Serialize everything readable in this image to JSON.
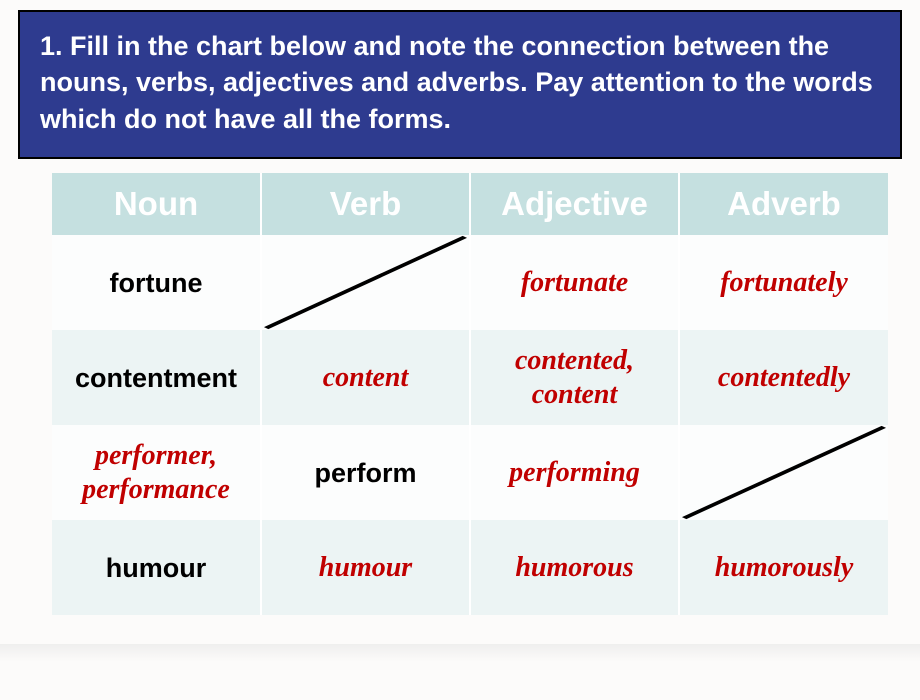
{
  "header": {
    "text": "1.  Fill in the chart below and note the connection between the nouns, verbs, adjectives and adverbs. Pay attention to the words which do not have all the forms."
  },
  "table": {
    "headers": [
      "Noun",
      "Verb",
      "Adjective",
      "Adverb"
    ],
    "header_bg": "#c5e0e0",
    "header_color": "#ffffff",
    "plain_color": "#000000",
    "answer_color": "#c00000",
    "rows": [
      {
        "noun": {
          "text": "fortune",
          "style": "plain"
        },
        "verb": {
          "text": "",
          "style": "diag"
        },
        "adjective": {
          "text": "fortunate",
          "style": "answer"
        },
        "adverb": {
          "text": "fortunately",
          "style": "answer"
        }
      },
      {
        "noun": {
          "text": "contentment",
          "style": "plain"
        },
        "verb": {
          "text": "content",
          "style": "answer"
        },
        "adjective": {
          "text": "contented, content",
          "style": "answer"
        },
        "adverb": {
          "text": "contentedly",
          "style": "answer"
        }
      },
      {
        "noun": {
          "text": "performer, performance",
          "style": "answer"
        },
        "verb": {
          "text": "perform",
          "style": "plain"
        },
        "adjective": {
          "text": "performing",
          "style": "answer"
        },
        "adverb": {
          "text": "",
          "style": "diag"
        }
      },
      {
        "noun": {
          "text": "humour",
          "style": "plain"
        },
        "verb": {
          "text": "humour",
          "style": "answer"
        },
        "adjective": {
          "text": "humorous",
          "style": "answer"
        },
        "adverb": {
          "text": "humorously",
          "style": "answer"
        }
      }
    ]
  },
  "colors": {
    "header_box_bg": "#2e3b8f",
    "slide_bg": "#fcfbfa"
  }
}
